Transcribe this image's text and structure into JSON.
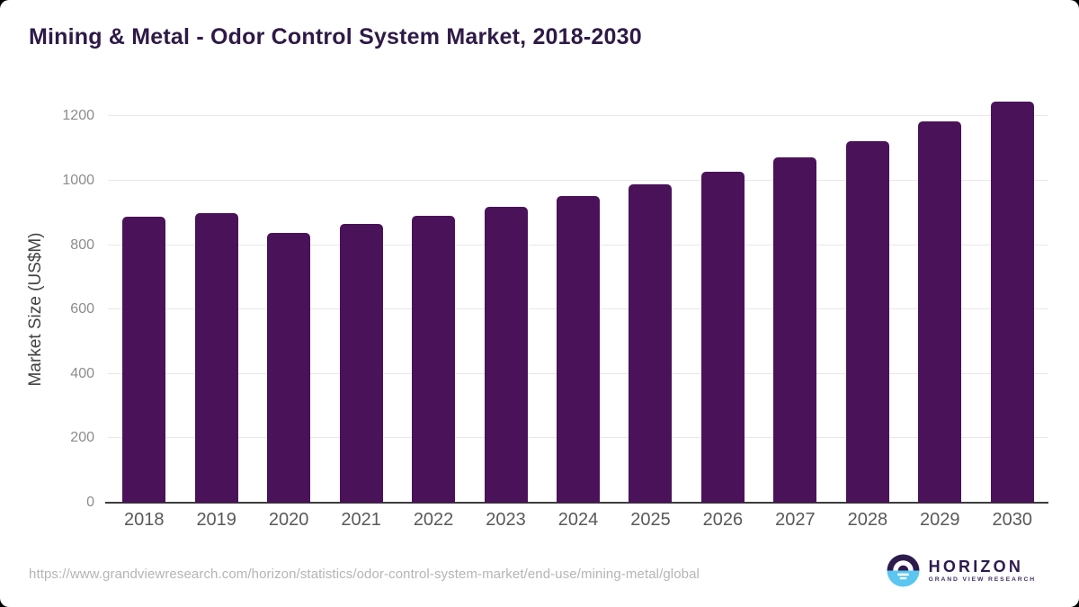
{
  "page": {
    "background_color": "#000000",
    "card_color": "#ffffff",
    "title_color": "#2e1a47"
  },
  "title": "Mining & Metal - Odor Control System Market, 2018-2030",
  "source_url": "https://www.grandviewresearch.com/horizon/statistics/odor-control-system-market/end-use/mining-metal/global",
  "logo": {
    "name": "HORIZON",
    "subtitle": "GRAND VIEW RESEARCH",
    "mark_top_color": "#2d1b4e",
    "mark_bottom_color": "#5bc6f0"
  },
  "chart_data": {
    "type": "bar",
    "title": "Mining & Metal - Odor Control System Market, 2018-2030",
    "categories": [
      "2018",
      "2019",
      "2020",
      "2021",
      "2022",
      "2023",
      "2024",
      "2025",
      "2026",
      "2027",
      "2028",
      "2029",
      "2030"
    ],
    "values": [
      889,
      899,
      838,
      865,
      891,
      920,
      952,
      988,
      1027,
      1074,
      1124,
      1184,
      1247
    ],
    "xlabel": "",
    "ylabel": "Market Size (US$M)",
    "ylim": [
      0,
      1285
    ],
    "yticks": [
      0,
      200,
      400,
      600,
      800,
      1000,
      1200
    ],
    "grid": true,
    "legend": "none",
    "bar_color": "#4a1259",
    "gridline_color": "#e8e8e8",
    "axis_color": "#3d3d3d",
    "ytick_color": "#8c8c8c",
    "xtick_color": "#595959"
  }
}
